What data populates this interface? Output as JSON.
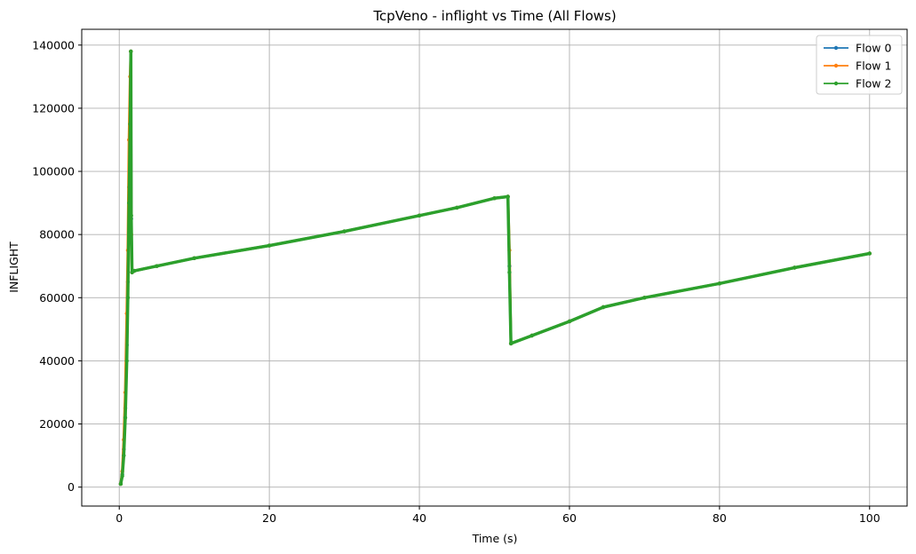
{
  "chart_data": {
    "type": "line",
    "title": "TcpVeno - inflight vs Time (All Flows)",
    "xlabel": "Time (s)",
    "ylabel": "INFLIGHT",
    "xlim": [
      -5,
      105
    ],
    "ylim": [
      -6000,
      145000
    ],
    "x_ticks": [
      0,
      20,
      40,
      60,
      80,
      100
    ],
    "y_ticks": [
      0,
      20000,
      40000,
      60000,
      80000,
      100000,
      120000,
      140000
    ],
    "x_tick_labels": [
      "0",
      "20",
      "40",
      "60",
      "80",
      "100"
    ],
    "y_tick_labels": [
      "0",
      "20000",
      "40000",
      "60000",
      "80000",
      "100000",
      "120000",
      "140000"
    ],
    "grid": true,
    "legend_position": "top-right",
    "series": [
      {
        "name": "Flow 0",
        "color": "#1f77b4",
        "x": [
          0.2,
          0.4,
          0.6,
          0.8,
          1.0,
          1.15,
          1.3,
          1.45,
          1.55,
          1.6,
          1.7,
          2.0,
          5,
          10,
          20,
          30,
          40,
          45,
          50,
          51.8,
          52.0,
          52.2,
          55,
          60,
          64.5,
          70,
          80,
          90,
          100
        ],
        "y": [
          1000,
          4000,
          12000,
          25000,
          45000,
          65000,
          95000,
          120000,
          138000,
          85000,
          68000,
          68500,
          70000,
          72500,
          76500,
          81000,
          86000,
          88500,
          91500,
          92000,
          70000,
          45500,
          48000,
          52500,
          57000,
          60000,
          64500,
          69500,
          74000
        ]
      },
      {
        "name": "Flow 1",
        "color": "#ff7f0e",
        "x": [
          0.2,
          0.4,
          0.6,
          0.8,
          1.0,
          1.15,
          1.3,
          1.45,
          1.55,
          1.6,
          1.7,
          2.0,
          5,
          10,
          20,
          30,
          40,
          45,
          50,
          51.8,
          52.0,
          52.2,
          55,
          60,
          64.5,
          70,
          80,
          90,
          100
        ],
        "y": [
          1000,
          5000,
          15000,
          30000,
          55000,
          75000,
          110000,
          130000,
          138000,
          80000,
          68000,
          68500,
          70000,
          72500,
          76500,
          81000,
          86000,
          88500,
          91500,
          92000,
          75000,
          45500,
          48000,
          52500,
          57000,
          60000,
          64500,
          69500,
          74000
        ]
      },
      {
        "name": "Flow 2",
        "color": "#2ca02c",
        "x": [
          0.2,
          0.4,
          0.6,
          0.8,
          1.0,
          1.15,
          1.3,
          1.45,
          1.55,
          1.6,
          1.7,
          2.0,
          5,
          10,
          20,
          30,
          40,
          45,
          50,
          51.8,
          52.0,
          52.2,
          55,
          60,
          64.5,
          70,
          80,
          90,
          100
        ],
        "y": [
          1000,
          3500,
          10000,
          22000,
          40000,
          60000,
          90000,
          115000,
          138000,
          86000,
          68000,
          68500,
          70000,
          72500,
          76500,
          81000,
          86000,
          88500,
          91500,
          92000,
          68000,
          45500,
          48000,
          52500,
          57000,
          60000,
          64500,
          69500,
          74000
        ]
      }
    ]
  }
}
